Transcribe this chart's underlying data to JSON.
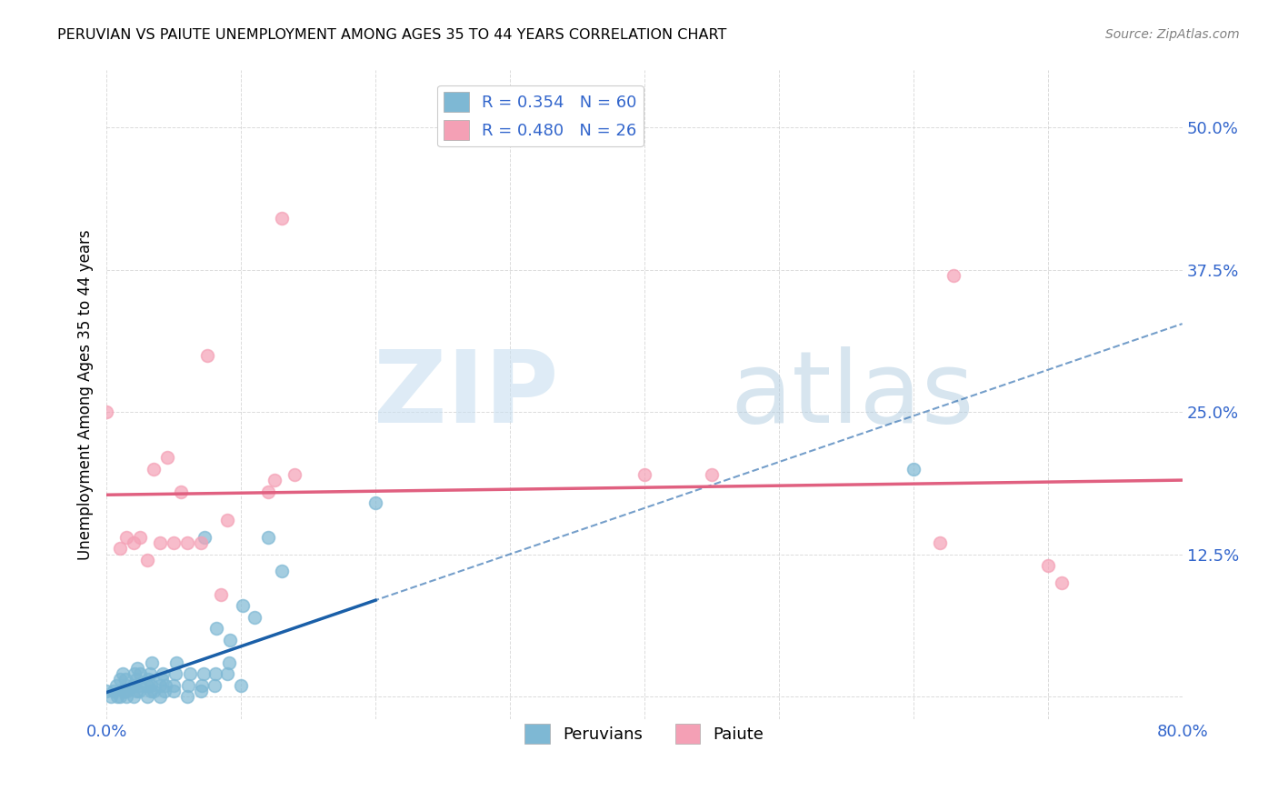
{
  "title": "PERUVIAN VS PAIUTE UNEMPLOYMENT AMONG AGES 35 TO 44 YEARS CORRELATION CHART",
  "source": "Source: ZipAtlas.com",
  "ylabel": "Unemployment Among Ages 35 to 44 years",
  "xlim": [
    0.0,
    0.8
  ],
  "ylim": [
    -0.02,
    0.55
  ],
  "xticks": [
    0.0,
    0.1,
    0.2,
    0.3,
    0.4,
    0.5,
    0.6,
    0.7,
    0.8
  ],
  "xticklabels": [
    "0.0%",
    "",
    "",
    "",
    "",
    "",
    "",
    "",
    "80.0%"
  ],
  "yticks": [
    0.0,
    0.125,
    0.25,
    0.375,
    0.5
  ],
  "yticklabels": [
    "",
    "12.5%",
    "25.0%",
    "37.5%",
    "50.0%"
  ],
  "peruvian_R": 0.354,
  "peruvian_N": 60,
  "paiute_R": 0.48,
  "paiute_N": 26,
  "peruvian_color": "#7eb8d4",
  "paiute_color": "#f4a0b5",
  "peruvian_line_color": "#1a5fa8",
  "paiute_line_color": "#e06080",
  "peruvian_line_dash_color": "#7eb8d4",
  "legend_color": "#3366cc",
  "peruvian_x": [
    0.0,
    0.003,
    0.005,
    0.007,
    0.008,
    0.01,
    0.01,
    0.012,
    0.013,
    0.014,
    0.015,
    0.015,
    0.015,
    0.02,
    0.02,
    0.021,
    0.022,
    0.022,
    0.023,
    0.024,
    0.025,
    0.025,
    0.03,
    0.03,
    0.031,
    0.032,
    0.033,
    0.033,
    0.034,
    0.035,
    0.04,
    0.04,
    0.041,
    0.042,
    0.043,
    0.044,
    0.05,
    0.05,
    0.051,
    0.052,
    0.06,
    0.061,
    0.062,
    0.07,
    0.071,
    0.072,
    0.073,
    0.08,
    0.081,
    0.082,
    0.09,
    0.091,
    0.092,
    0.1,
    0.101,
    0.11,
    0.12,
    0.13,
    0.2,
    0.6
  ],
  "peruvian_y": [
    0.005,
    0.0,
    0.005,
    0.01,
    0.0,
    0.0,
    0.015,
    0.02,
    0.005,
    0.015,
    0.0,
    0.005,
    0.01,
    0.0,
    0.01,
    0.02,
    0.005,
    0.015,
    0.025,
    0.005,
    0.01,
    0.02,
    0.0,
    0.01,
    0.015,
    0.02,
    0.005,
    0.01,
    0.03,
    0.005,
    0.0,
    0.01,
    0.015,
    0.02,
    0.005,
    0.01,
    0.005,
    0.01,
    0.02,
    0.03,
    0.0,
    0.01,
    0.02,
    0.005,
    0.01,
    0.02,
    0.14,
    0.01,
    0.02,
    0.06,
    0.02,
    0.03,
    0.05,
    0.01,
    0.08,
    0.07,
    0.14,
    0.11,
    0.17,
    0.2
  ],
  "paiute_x": [
    0.0,
    0.01,
    0.015,
    0.02,
    0.025,
    0.03,
    0.035,
    0.04,
    0.045,
    0.05,
    0.055,
    0.06,
    0.07,
    0.075,
    0.085,
    0.09,
    0.12,
    0.125,
    0.13,
    0.14,
    0.4,
    0.45,
    0.62,
    0.63,
    0.7,
    0.71
  ],
  "paiute_y": [
    0.25,
    0.13,
    0.14,
    0.135,
    0.14,
    0.12,
    0.2,
    0.135,
    0.21,
    0.135,
    0.18,
    0.135,
    0.135,
    0.3,
    0.09,
    0.155,
    0.18,
    0.19,
    0.42,
    0.195,
    0.195,
    0.195,
    0.135,
    0.37,
    0.115,
    0.1
  ]
}
